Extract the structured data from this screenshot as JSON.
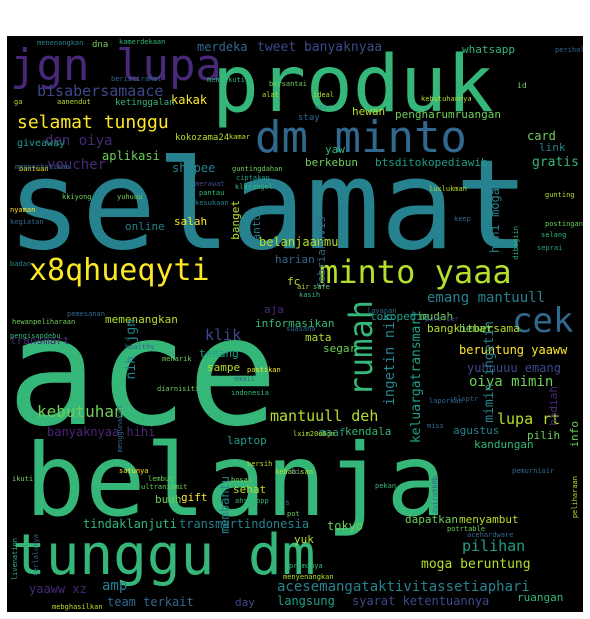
{
  "palette": [
    "#fde725",
    "#b5de2b",
    "#6ece58",
    "#35b779",
    "#1f9e89",
    "#26828e",
    "#31688e",
    "#3e4989",
    "#482878",
    "#440154"
  ],
  "words": [
    {
      "text": "ace",
      "color": "#35b779"
    },
    {
      "text": "selamat",
      "color": "#26828e"
    },
    {
      "text": "belanja",
      "color": "#35b779"
    },
    {
      "text": "produk",
      "color": "#35b779"
    },
    {
      "text": "tunggu dm",
      "color": "#35b779"
    },
    {
      "text": "dm minto",
      "color": "#31688e"
    },
    {
      "text": "jgn lupa",
      "color": "#482878"
    },
    {
      "text": "x8qhueqyti",
      "color": "#fde725"
    },
    {
      "text": "minto yaaa",
      "color": "#b5de2b"
    },
    {
      "text": "rumah",
      "color": "#35b779"
    },
    {
      "text": "cek",
      "color": "#31688e"
    },
    {
      "text": "selamat tunggu",
      "color": "#fde725"
    },
    {
      "text": "bisabersamaace",
      "color": "#3e4989"
    },
    {
      "text": "kebutuhan",
      "color": "#6ece58"
    },
    {
      "text": "mantuull deh",
      "color": "#b5de2b"
    },
    {
      "text": "acesemangataktivitassetiaphari",
      "color": "#26828e"
    },
    {
      "text": "keluargatransmart",
      "color": "#1f9e89"
    },
    {
      "text": "emang mantuull",
      "color": "#26828e"
    },
    {
      "text": "moga beruntung",
      "color": "#b5de2b"
    },
    {
      "text": "oiya mimin",
      "color": "#6ece58"
    },
    {
      "text": "lupa rt",
      "color": "#b5de2b"
    },
    {
      "text": "pilihan",
      "color": "#1f9e89"
    },
    {
      "text": "tweet banyaknyaa",
      "color": "#3e4989"
    },
    {
      "text": "merdeka",
      "color": "#31688e"
    },
    {
      "text": "whatsapp",
      "color": "#35b779"
    },
    {
      "text": "den oiya",
      "color": "#482878"
    },
    {
      "text": "voucher",
      "color": "#482878"
    },
    {
      "text": "hewan",
      "color": "#b5de2b"
    },
    {
      "text": "pengharumruangan",
      "color": "#6ece58"
    },
    {
      "text": "card",
      "color": "#6ece58"
    },
    {
      "text": "link",
      "color": "#26828e"
    },
    {
      "text": "gratis",
      "color": "#35b779"
    },
    {
      "text": "kakak",
      "color": "#fde725"
    },
    {
      "text": "aplikasi",
      "color": "#6ece58"
    },
    {
      "text": "shopee",
      "color": "#26828e"
    },
    {
      "text": "klik",
      "color": "#3e4989"
    },
    {
      "text": "banyaknyaa hihi",
      "color": "#482878"
    },
    {
      "text": "yuhuuuu emang",
      "color": "#3e4989"
    },
    {
      "text": "beruntung yaaww",
      "color": "#fde725"
    },
    {
      "text": "ingetin nih",
      "color": "#26828e"
    },
    {
      "text": "mimin ingetin",
      "color": "#26828e"
    },
    {
      "text": "hihi moga",
      "color": "#26828e"
    },
    {
      "text": "online",
      "color": "#26828e"
    },
    {
      "text": "salah",
      "color": "#fde725"
    },
    {
      "text": "memenangkan",
      "color": "#b5de2b"
    },
    {
      "text": "informasikan",
      "color": "#35b779"
    },
    {
      "text": "tokopedia",
      "color": "#1f9e89"
    },
    {
      "text": "mudah",
      "color": "#6ece58"
    },
    {
      "text": "bangkitbersama",
      "color": "#b5de2b"
    },
    {
      "text": "hemat",
      "color": "#6ece58"
    },
    {
      "text": "tenang",
      "color": "#1f9e89"
    },
    {
      "text": "sampe",
      "color": "#b5de2b"
    },
    {
      "text": "segar",
      "color": "#6ece58"
    },
    {
      "text": "mata",
      "color": "#b5de2b"
    },
    {
      "text": "kendala",
      "color": "#35b779"
    },
    {
      "text": "maaf",
      "color": "#1f9e89"
    },
    {
      "text": "agustus",
      "color": "#26828e"
    },
    {
      "text": "kandungan",
      "color": "#35b779"
    },
    {
      "text": "laptop",
      "color": "#1f9e89"
    },
    {
      "text": "sehat",
      "color": "#b5de2b"
    },
    {
      "text": "buah",
      "color": "#6ece58"
    },
    {
      "text": "gift",
      "color": "#fde725"
    },
    {
      "text": "tindaklanjuti",
      "color": "#35b779"
    },
    {
      "text": "transmartindonesia",
      "color": "#26828e"
    },
    {
      "text": "tokyo",
      "color": "#6ece58"
    },
    {
      "text": "dapatkan",
      "color": "#6ece58"
    },
    {
      "text": "menyambut",
      "color": "#b5de2b"
    },
    {
      "text": "yuk",
      "color": "#b5de2b"
    },
    {
      "text": "amp",
      "color": "#26828e"
    },
    {
      "text": "yaaww xz",
      "color": "#482878"
    },
    {
      "text": "team terkait",
      "color": "#31688e"
    },
    {
      "text": "langsung",
      "color": "#1f9e89"
    },
    {
      "text": "syarat ketentuannya",
      "color": "#3e4989"
    },
    {
      "text": "ruangan",
      "color": "#35b779"
    },
    {
      "text": "day",
      "color": "#3e4989"
    },
    {
      "text": "yaw",
      "color": "#35b779"
    },
    {
      "text": "berkebun",
      "color": "#6ece58"
    },
    {
      "text": "btsditokopediawib",
      "color": "#1f9e89"
    },
    {
      "text": "belanjaanmu",
      "color": "#b5de2b"
    },
    {
      "text": "fc",
      "color": "#b5de2b"
    },
    {
      "text": "harian",
      "color": "#31688e"
    },
    {
      "text": "aja",
      "color": "#482878"
    },
    {
      "text": "transmart",
      "color": "#482878"
    },
    {
      "text": "nih",
      "color": "#26828e"
    },
    {
      "text": "jgn",
      "color": "#26828e"
    },
    {
      "text": "membantu",
      "color": "#26828e"
    },
    {
      "text": "febrianov19",
      "color": "#31688e"
    },
    {
      "text": "bantu",
      "color": "#26828e"
    },
    {
      "text": "banget",
      "color": "#b5de2b"
    },
    {
      "text": "hadiah",
      "color": "#482878"
    },
    {
      "text": "info",
      "color": "#6ece58"
    },
    {
      "text": "pilih",
      "color": "#6ece58"
    },
    {
      "text": "giveaway",
      "color": "#1f9e89"
    },
    {
      "text": "kokozama24",
      "color": "#b5de2b"
    },
    {
      "text": "ketinggalan",
      "color": "#35b779"
    },
    {
      "text": "menenangkan",
      "color": "#26828e"
    },
    {
      "text": "dna",
      "color": "#6ece58"
    },
    {
      "text": "kamerdekaan",
      "color": "#35b779"
    },
    {
      "text": "perihal",
      "color": "#31688e"
    },
    {
      "text": "bersantai",
      "color": "#6ece58"
    },
    {
      "text": "ideal",
      "color": "#b5de2b"
    },
    {
      "text": "alat",
      "color": "#b5de2b"
    },
    {
      "text": "id",
      "color": "#6ece58"
    },
    {
      "text": "stay",
      "color": "#31688e"
    },
    {
      "text": "kebutuhannya",
      "color": "#b5de2b"
    },
    {
      "text": "ga",
      "color": "#b5de2b"
    },
    {
      "text": "aanendut",
      "color": "#b5de2b"
    },
    {
      "text": "usir",
      "color": "#26828e"
    },
    {
      "text": "bantuan",
      "color": "#fde725"
    },
    {
      "text": "kamar",
      "color": "#b5de2b"
    },
    {
      "text": "beristirahat",
      "color": "#31688e"
    },
    {
      "text": "mengikuti",
      "color": "#35b779"
    },
    {
      "text": "merawat",
      "color": "#3e4989"
    },
    {
      "text": "pantau",
      "color": "#35b779"
    },
    {
      "text": "kesukaan",
      "color": "#26828e"
    },
    {
      "text": "luxlukman",
      "color": "#b5de2b"
    },
    {
      "text": "gunting",
      "color": "#b5de2b"
    },
    {
      "text": "postingan",
      "color": "#6ece58"
    },
    {
      "text": "seprai",
      "color": "#1f9e89"
    },
    {
      "text": "nyaman",
      "color": "#fde725"
    },
    {
      "text": "kegiatan",
      "color": "#31688e"
    },
    {
      "text": "badan",
      "color": "#26828e"
    },
    {
      "text": "pemesanan",
      "color": "#31688e"
    },
    {
      "text": "hewanpeliharaan",
      "color": "#6ece58"
    },
    {
      "text": "pengisapdebu",
      "color": "#35b779"
    },
    {
      "text": "healthy",
      "color": "#31688e"
    },
    {
      "text": "air",
      "color": "#b5de2b"
    },
    {
      "text": "safe",
      "color": "#6ece58"
    },
    {
      "text": "kasih",
      "color": "#35b779"
    },
    {
      "text": "layanan",
      "color": "#31688e"
    },
    {
      "text": "suasana",
      "color": "#31688e"
    },
    {
      "text": "purifier",
      "color": "#3e4989"
    },
    {
      "text": "menarik",
      "color": "#6ece58"
    },
    {
      "text": "pastikan",
      "color": "#fde725"
    },
    {
      "text": "email",
      "color": "#31688e"
    },
    {
      "text": "indonesia",
      "color": "#35b779"
    },
    {
      "text": "diarnisiti",
      "color": "#6ece58"
    },
    {
      "text": "laporkan",
      "color": "#31688e"
    },
    {
      "text": "kehabisan",
      "color": "#b5de2b"
    },
    {
      "text": "satunya",
      "color": "#fde725"
    },
    {
      "text": "ikuti",
      "color": "#6ece58"
    },
    {
      "text": "bersih",
      "color": "#b5de2b"
    },
    {
      "text": "bosan",
      "color": "#6ece58"
    },
    {
      "text": "pekan",
      "color": "#35b779"
    },
    {
      "text": "pemurniair",
      "color": "#31688e"
    },
    {
      "text": "peliharaan",
      "color": "#b5de2b"
    },
    {
      "text": "potrtable",
      "color": "#6ece58"
    },
    {
      "text": "promonya",
      "color": "#35b779"
    },
    {
      "text": "menyenangkan",
      "color": "#b5de2b"
    },
    {
      "text": "mebghasilkan",
      "color": "#b5de2b"
    },
    {
      "text": "ultranismit",
      "color": "#6ece58"
    },
    {
      "text": "lembut",
      "color": "#6ece58"
    },
    {
      "text": "ahsiappp",
      "color": "#35b779"
    },
    {
      "text": "guntingdahan",
      "color": "#6ece58"
    },
    {
      "text": "ciptakan",
      "color": "#1f9e89"
    },
    {
      "text": "klazangel",
      "color": "#35b779"
    },
    {
      "text": "memperhatikan",
      "color": "#31688e"
    },
    {
      "text": "kkiyong",
      "color": "#6ece58"
    },
    {
      "text": "yuhuuu",
      "color": "#6ece58"
    },
    {
      "text": "keep",
      "color": "#31688e"
    },
    {
      "text": "selang",
      "color": "#35b779"
    },
    {
      "text": "dibagiin",
      "color": "#35b779"
    },
    {
      "text": "lxim20o8jn",
      "color": "#b5de2b"
    },
    {
      "text": "rlsptr",
      "color": "#31688e"
    },
    {
      "text": "miss",
      "color": "#31688e"
    },
    {
      "text": "menggunakan",
      "color": "#31688e"
    },
    {
      "text": "livenation",
      "color": "#35b779"
    },
    {
      "text": "terlalunya",
      "color": "#31688e"
    },
    {
      "text": "acehardware",
      "color": "#31688e"
    },
    {
      "text": "zuirq9b8b",
      "color": "#31688e"
    },
    {
      "text": "sku",
      "color": "#31688e"
    },
    {
      "text": "pot",
      "color": "#6ece58"
    },
    {
      "text": "s",
      "color": "#31688e"
    }
  ]
}
